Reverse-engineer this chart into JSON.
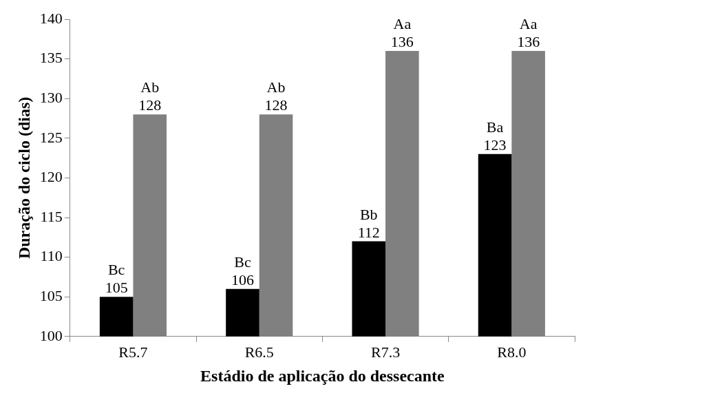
{
  "chart_data": {
    "type": "bar",
    "xlabel": "Estádio de aplicação do dessecante",
    "ylabel": "Duração do ciclo (dias)",
    "categories": [
      "R5.7",
      "R6.5",
      "R7.3",
      "R8.0"
    ],
    "series": [
      {
        "color": "#000000",
        "values": [
          105,
          106,
          112,
          123
        ],
        "value_labels": [
          "Bc\n105",
          "Bc\n106",
          "Bb\n112",
          "Ba\n123"
        ]
      },
      {
        "color": "#808080",
        "values": [
          128,
          128,
          136,
          136
        ],
        "value_labels": [
          "Ab\n128",
          "Ab\n128",
          "Aa\n136",
          "Aa\n136"
        ]
      }
    ],
    "ylim": [
      100,
      140
    ],
    "yticks": [
      100,
      105,
      110,
      115,
      120,
      125,
      130,
      135,
      140
    ],
    "grid": false
  }
}
